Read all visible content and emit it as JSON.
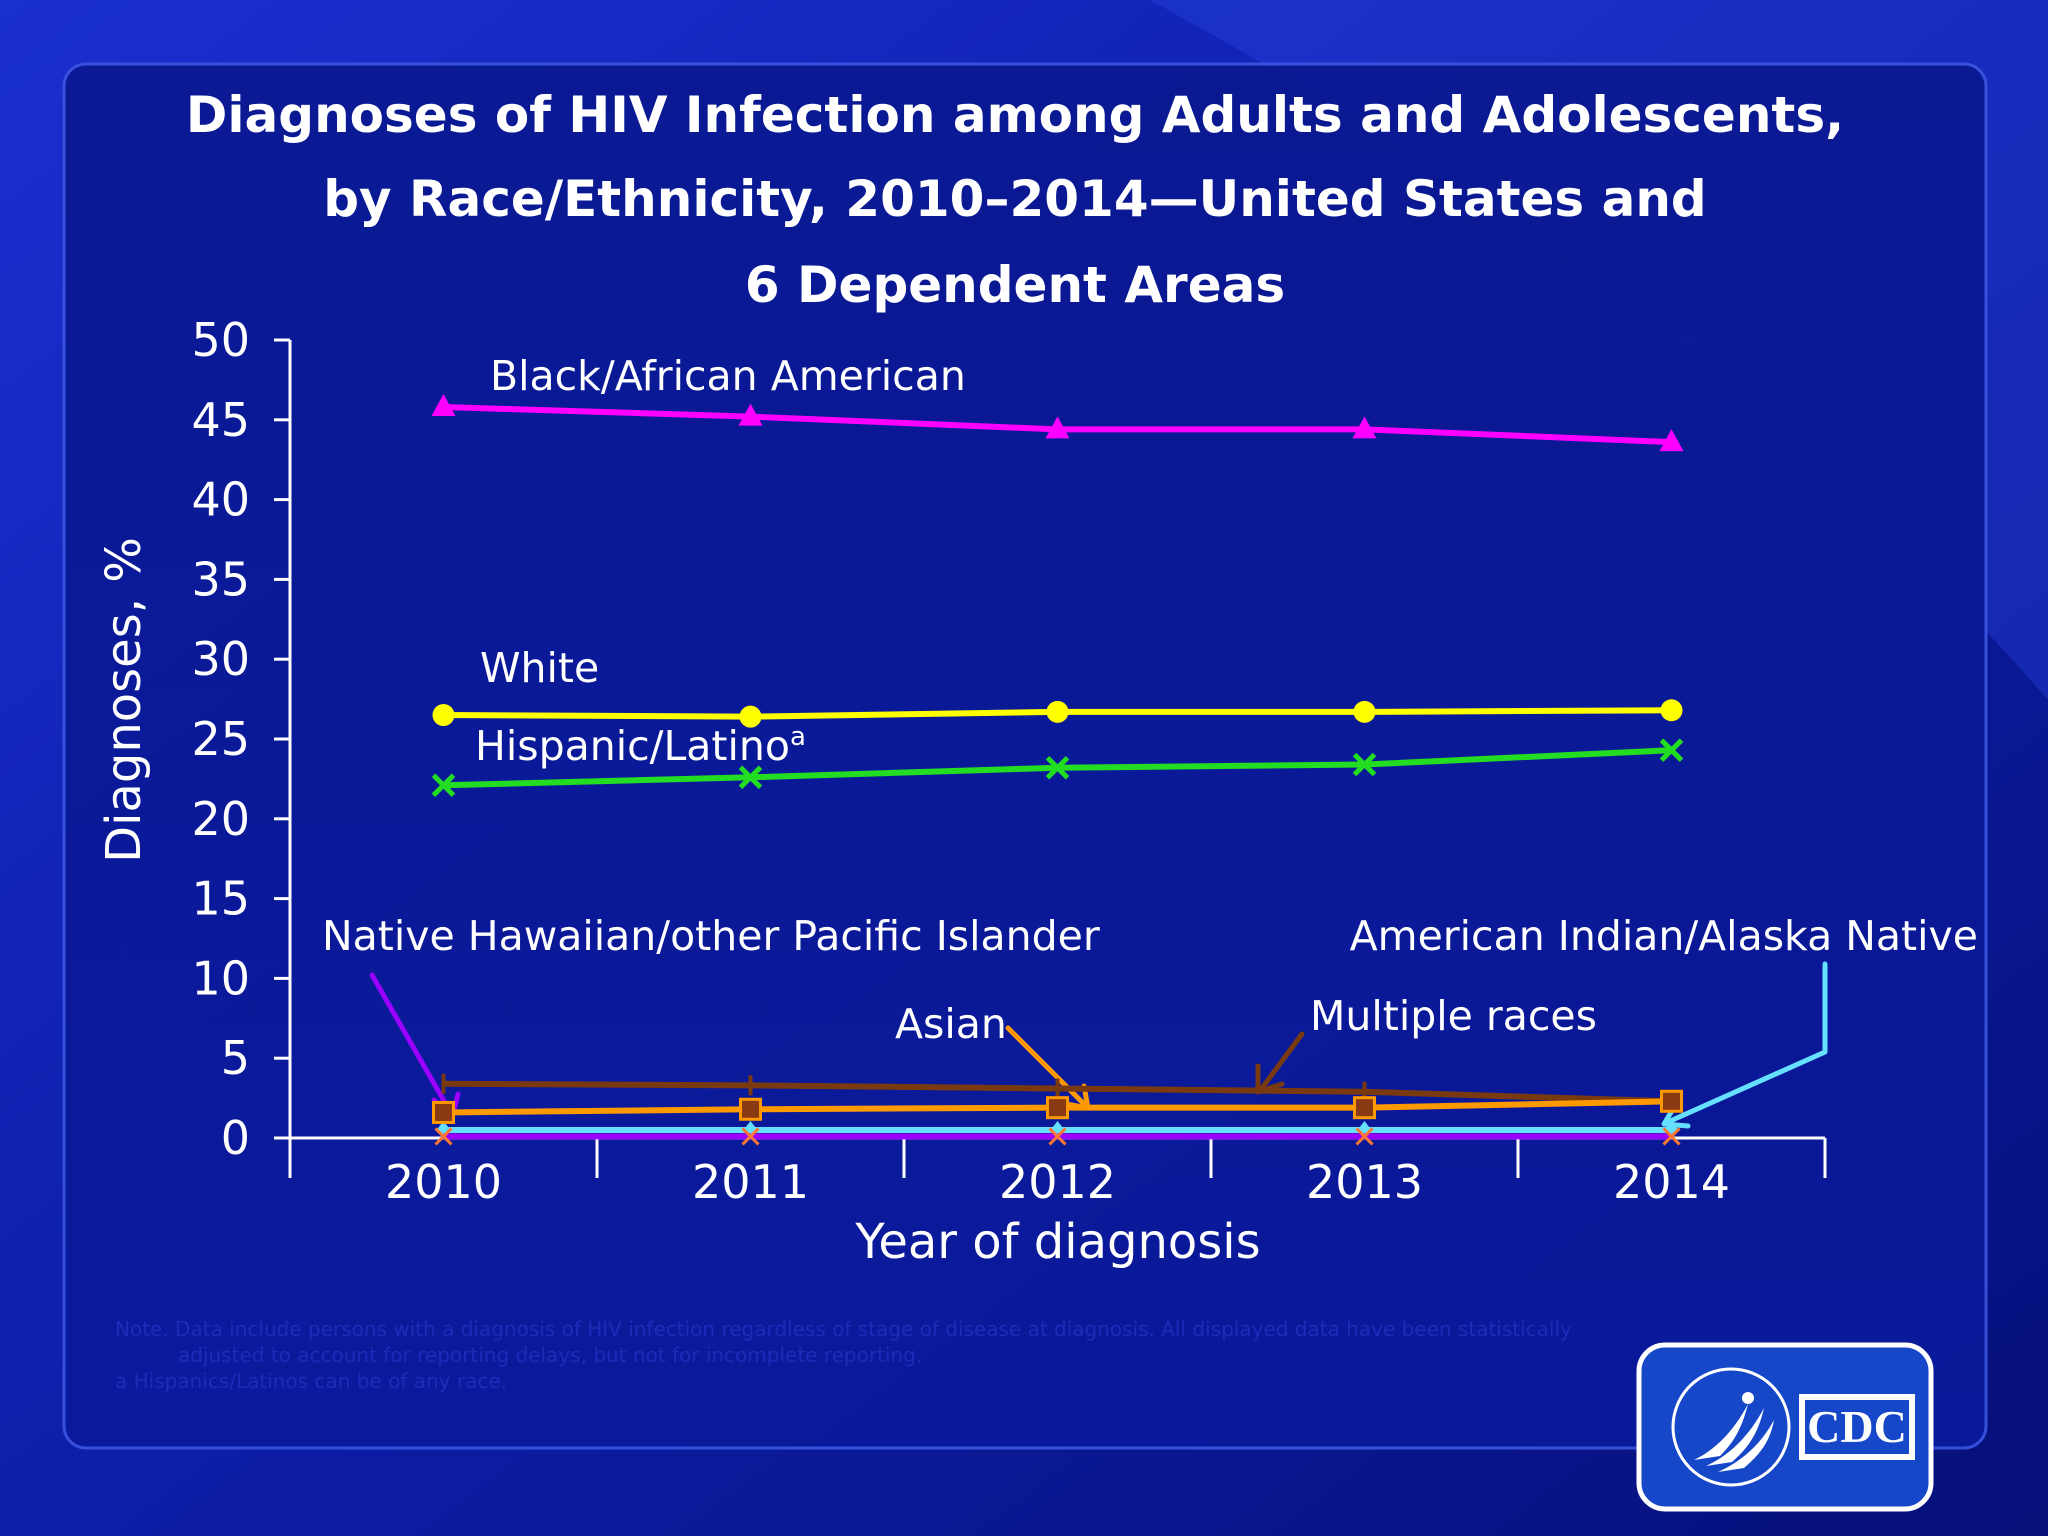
{
  "title_lines": [
    "Diagnoses of HIV Infection among Adults and Adolescents,",
    "by Race/Ethnicity, 2010–2014—United States and",
    "6 Dependent Areas"
  ],
  "footnotes": [
    "Note. Data include persons with a diagnosis of HIV infection regardless of stage of disease at diagnosis. All displayed data have been statistically",
    "adjusted to account for reporting delays, but not for incomplete reporting.",
    "a Hispanics/Latinos can be of any race."
  ],
  "logo": {
    "text": "CDC"
  },
  "chart_data": {
    "type": "line",
    "xlabel": "Year of diagnosis",
    "ylabel": "Diagnoses, %",
    "x": [
      "2010",
      "2011",
      "2012",
      "2013",
      "2014"
    ],
    "ylim": [
      0,
      50
    ],
    "yticks": [
      "0",
      "5",
      "10",
      "15",
      "20",
      "25",
      "30",
      "35",
      "40",
      "45",
      "50"
    ],
    "series": [
      {
        "key": "aian",
        "name": "American Indian/Alaska Native",
        "values": [
          0.5,
          0.5,
          0.5,
          0.5,
          0.5
        ],
        "color": "#66e0ff",
        "marker": "diamond"
      },
      {
        "key": "nhopi",
        "name": "Native Hawaiian/other Pacific Islander",
        "values": [
          0.1,
          0.1,
          0.1,
          0.1,
          0.1
        ],
        "color": "#9900ff",
        "marker": "star"
      },
      {
        "key": "multiple",
        "name": "Multiple races",
        "values": [
          3.4,
          3.3,
          3.1,
          2.9,
          2.3
        ],
        "color": "#7a3a10",
        "marker": "plus"
      },
      {
        "key": "asian",
        "name": "Asian",
        "values": [
          1.6,
          1.8,
          1.9,
          1.9,
          2.3
        ],
        "color": "#ff9900",
        "marker": "square"
      },
      {
        "key": "hispanic",
        "name": "Hispanic/Latino",
        "label_suffix": "a",
        "values": [
          22.1,
          22.6,
          23.2,
          23.4,
          24.3
        ],
        "color": "#22dd22",
        "marker": "x"
      },
      {
        "key": "white",
        "name": "White",
        "values": [
          26.5,
          26.4,
          26.7,
          26.7,
          26.8
        ],
        "color": "#ffff00",
        "marker": "circle"
      },
      {
        "key": "black",
        "name": "Black/African American",
        "values": [
          45.8,
          45.2,
          44.4,
          44.4,
          43.6
        ],
        "color": "#ff00ff",
        "marker": "triangle"
      }
    ]
  }
}
